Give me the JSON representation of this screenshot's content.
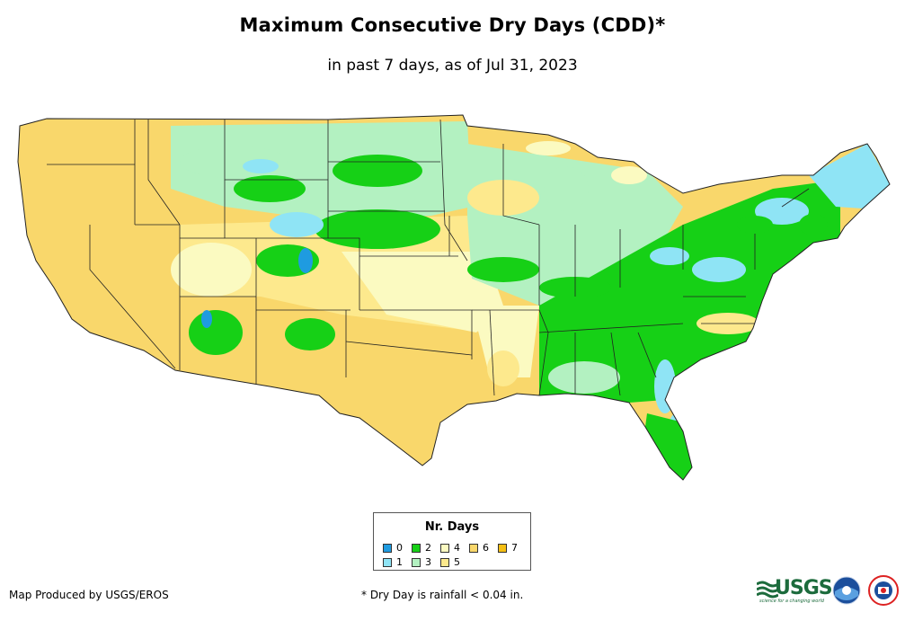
{
  "title": "Maximum Consecutive Dry Days (CDD)*",
  "subtitle": "in past 7 days, as of Jul 31, 2023",
  "legend": {
    "title": "Nr. Days",
    "items": [
      {
        "label": "0",
        "color": "#1f9be0"
      },
      {
        "label": "1",
        "color": "#8fe4f5"
      },
      {
        "label": "2",
        "color": "#16d016"
      },
      {
        "label": "3",
        "color": "#b3f1c1"
      },
      {
        "label": "4",
        "color": "#fbfac1"
      },
      {
        "label": "5",
        "color": "#fde98d"
      },
      {
        "label": "6",
        "color": "#f9d76b"
      },
      {
        "label": "7",
        "color": "#f5bf13"
      }
    ]
  },
  "footer": {
    "credit": "Map Produced by USGS/EROS",
    "note": "* Dry Day is rainfall < 0.04 in."
  },
  "logos": {
    "usgs": "USGS",
    "usgs_tagline": "science for a changing world",
    "noaa": "noaa-logo",
    "nws": "nws-logo"
  },
  "colors": {
    "border": "#222222",
    "usgs_green": "#1c6b3c",
    "noaa_blue": "#1c4f9c"
  }
}
